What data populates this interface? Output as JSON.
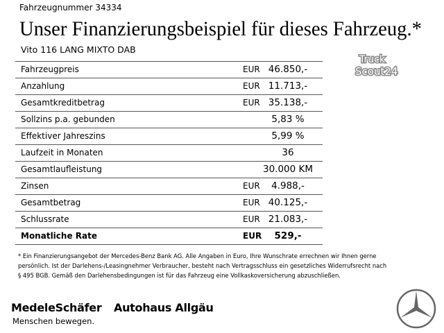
{
  "header": {
    "vehicle_number": "Fahrzeugnummer 34334",
    "title": "Unser Finanzierungsbeispiel für dieses Fahrzeug.*",
    "model": "Vito 116 LANG MIXTO DAB"
  },
  "logo": {
    "line1": "Truck",
    "line2": "Scout24"
  },
  "table": {
    "rows": [
      {
        "label": "Fahrzeugpreis",
        "currency": "EUR",
        "value": "46.850,-"
      },
      {
        "label": "Anzahlung",
        "currency": "EUR",
        "value": "11.713,-"
      },
      {
        "label": "Gesamtkreditbetrag",
        "currency": "EUR",
        "value": "35.138,-"
      },
      {
        "label": "Sollzins p.a. gebunden",
        "value": "5,83 %"
      },
      {
        "label": "Effektiver Jahreszins",
        "value": "5,99 %"
      },
      {
        "label": "Laufzeit in Monaten",
        "value": "36"
      },
      {
        "label": "Gesamtlaufleistung",
        "value": "30.000 KM"
      },
      {
        "label": "Zinsen",
        "currency": "EUR",
        "value": "4.988,-"
      },
      {
        "label": "Gesamtbetrag",
        "currency": "EUR",
        "value": "40.125,-"
      },
      {
        "label": "Schlussrate",
        "currency": "EUR",
        "value": "21.083,-"
      },
      {
        "label": "Monatliche Rate",
        "currency": "EUR",
        "value": "529,-"
      }
    ]
  },
  "footnote": {
    "lines": [
      "* Ein Finanzierungsangebot der Mercedes-Benz Bank AG. Alle Angaben in Euro, Ihre Wunschrate errechnen wir Ihnen gerne",
      "persönlich. Ist der Darlehens-/Leasingnehmer Verbraucher, besteht nach Vertragsschluss ein gesetzliches Widerrufsrecht nach",
      "§ 495 BGB. Gemäß den Darlehensbedingungen ist für das Fahrzeug eine Vollkaskoversicherung abzuschließen."
    ]
  },
  "footer": {
    "brand1": "MedeleSchäfer",
    "brand2": "Autohaus Allgäu",
    "slogan": "Menschen bewegen."
  }
}
